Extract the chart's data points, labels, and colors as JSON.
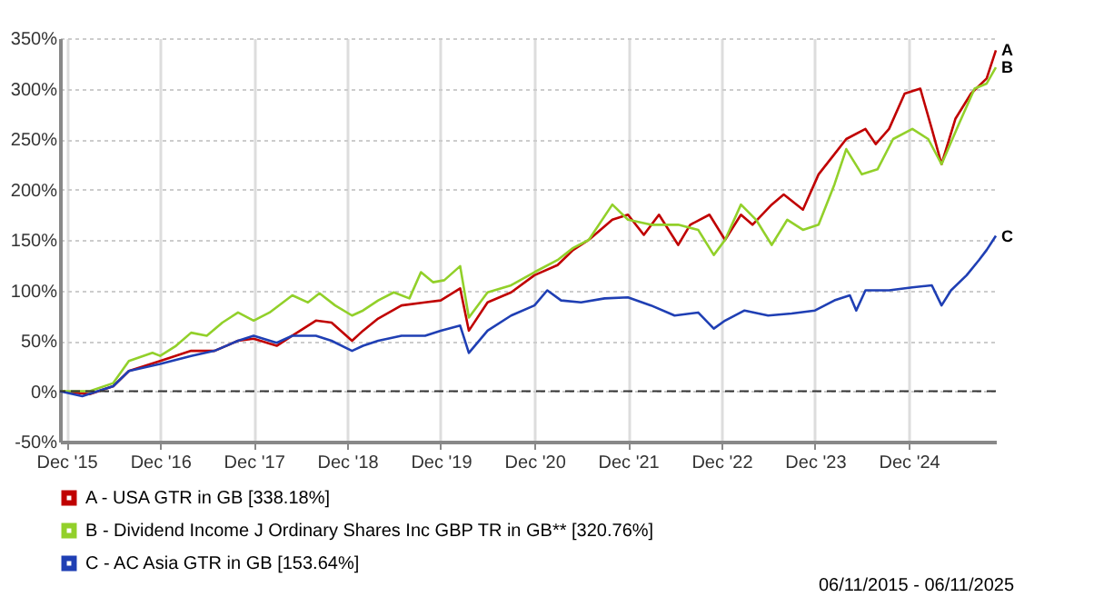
{
  "chart_data": {
    "type": "line",
    "series": [
      {
        "name": "A - USA GTR in GB [338.18%]",
        "color": "#c00000",
        "x": [
          "2015-11-06",
          "2016-03-01",
          "2016-06-01",
          "2016-08-01",
          "2016-12-01",
          "2017-04-01",
          "2017-07-01",
          "2017-10-01",
          "2017-12-01",
          "2018-03-01",
          "2018-05-01",
          "2018-08-01",
          "2018-10-01",
          "2018-12-20",
          "2019-02-01",
          "2019-04-01",
          "2019-07-01",
          "2019-10-01",
          "2019-12-01",
          "2020-02-15",
          "2020-03-20",
          "2020-06-01",
          "2020-09-01",
          "2020-12-01",
          "2021-03-01",
          "2021-05-01",
          "2021-07-01",
          "2021-10-01",
          "2021-12-01",
          "2022-02-01",
          "2022-04-01",
          "2022-06-15",
          "2022-08-01",
          "2022-10-15",
          "2022-12-15",
          "2023-02-15",
          "2023-04-01",
          "2023-06-15",
          "2023-08-01",
          "2023-10-15",
          "2023-12-15",
          "2024-02-15",
          "2024-04-01",
          "2024-06-15",
          "2024-07-25",
          "2024-09-15",
          "2024-11-15",
          "2025-01-15",
          "2025-03-01",
          "2025-04-08",
          "2025-06-01",
          "2025-08-01",
          "2025-10-01",
          "2025-11-06"
        ],
        "values": [
          0,
          -3,
          5,
          20,
          30,
          40,
          40,
          50,
          52,
          45,
          55,
          70,
          68,
          50,
          60,
          72,
          85,
          88,
          90,
          102,
          60,
          88,
          98,
          115,
          125,
          140,
          150,
          170,
          175,
          155,
          175,
          145,
          165,
          175,
          150,
          175,
          165,
          185,
          195,
          180,
          215,
          235,
          250,
          260,
          245,
          260,
          295,
          300,
          260,
          225,
          270,
          295,
          310,
          338
        ]
      },
      {
        "name": "B - Dividend Income J Ordinary Shares Inc GBP TR in GB** [320.76%]",
        "color": "#92d02a",
        "x": [
          "2015-11-06",
          "2016-03-01",
          "2016-06-01",
          "2016-08-01",
          "2016-11-01",
          "2016-12-01",
          "2017-02-01",
          "2017-04-01",
          "2017-06-01",
          "2017-08-01",
          "2017-10-01",
          "2017-12-01",
          "2018-02-01",
          "2018-05-01",
          "2018-07-01",
          "2018-08-15",
          "2018-10-15",
          "2018-12-20",
          "2019-02-01",
          "2019-04-01",
          "2019-06-01",
          "2019-08-01",
          "2019-09-15",
          "2019-11-01",
          "2019-12-15",
          "2020-02-15",
          "2020-03-20",
          "2020-06-01",
          "2020-09-01",
          "2020-12-01",
          "2021-03-01",
          "2021-05-01",
          "2021-07-01",
          "2021-10-01",
          "2021-12-01",
          "2022-03-01",
          "2022-06-15",
          "2022-09-01",
          "2022-11-01",
          "2022-12-15",
          "2023-02-15",
          "2023-04-15",
          "2023-06-15",
          "2023-08-15",
          "2023-10-15",
          "2023-12-15",
          "2024-02-15",
          "2024-04-01",
          "2024-06-01",
          "2024-08-01",
          "2024-10-01",
          "2024-12-15",
          "2025-02-15",
          "2025-04-08",
          "2025-06-15",
          "2025-08-15",
          "2025-10-01",
          "2025-11-06"
        ],
        "values": [
          0,
          0,
          8,
          30,
          38,
          35,
          45,
          58,
          55,
          68,
          78,
          70,
          78,
          95,
          88,
          97,
          85,
          75,
          80,
          90,
          98,
          92,
          118,
          108,
          110,
          124,
          73,
          98,
          105,
          118,
          130,
          142,
          150,
          185,
          170,
          165,
          165,
          160,
          135,
          150,
          185,
          170,
          145,
          170,
          160,
          165,
          205,
          240,
          215,
          220,
          250,
          260,
          250,
          225,
          265,
          300,
          305,
          321
        ]
      },
      {
        "name": "C - AC Asia GTR in GB [153.64%]",
        "color": "#1f3fb4",
        "x": [
          "2015-11-06",
          "2016-02-01",
          "2016-06-01",
          "2016-08-01",
          "2016-12-01",
          "2017-04-01",
          "2017-07-01",
          "2017-10-01",
          "2017-12-01",
          "2018-03-01",
          "2018-05-01",
          "2018-08-01",
          "2018-10-01",
          "2018-12-20",
          "2019-02-01",
          "2019-04-01",
          "2019-07-01",
          "2019-10-01",
          "2019-12-01",
          "2020-02-15",
          "2020-03-20",
          "2020-06-01",
          "2020-09-01",
          "2020-12-01",
          "2021-01-20",
          "2021-03-15",
          "2021-06-01",
          "2021-09-01",
          "2021-12-01",
          "2022-03-01",
          "2022-06-01",
          "2022-09-01",
          "2022-11-01",
          "2022-12-15",
          "2023-03-01",
          "2023-06-01",
          "2023-09-01",
          "2023-12-01",
          "2024-02-15",
          "2024-04-15",
          "2024-05-10",
          "2024-06-15",
          "2024-09-15",
          "2024-12-15",
          "2025-03-01",
          "2025-04-08",
          "2025-05-15",
          "2025-07-15",
          "2025-09-01",
          "2025-10-01",
          "2025-11-06"
        ],
        "values": [
          0,
          -5,
          5,
          20,
          27,
          35,
          40,
          50,
          55,
          48,
          55,
          55,
          50,
          40,
          45,
          50,
          55,
          55,
          60,
          65,
          38,
          60,
          75,
          85,
          100,
          90,
          88,
          92,
          93,
          85,
          75,
          78,
          62,
          70,
          80,
          75,
          77,
          80,
          90,
          95,
          80,
          100,
          100,
          103,
          105,
          85,
          100,
          115,
          130,
          140,
          154
        ]
      }
    ],
    "xlim": [
      "2015-11-06",
      "2025-11-06"
    ],
    "xticks": [
      {
        "value": "2015-12-01",
        "label": "Dec '15"
      },
      {
        "value": "2016-12-01",
        "label": "Dec '16"
      },
      {
        "value": "2017-12-01",
        "label": "Dec '17"
      },
      {
        "value": "2018-12-01",
        "label": "Dec '18"
      },
      {
        "value": "2019-12-01",
        "label": "Dec '19"
      },
      {
        "value": "2020-12-01",
        "label": "Dec '20"
      },
      {
        "value": "2021-12-01",
        "label": "Dec '21"
      },
      {
        "value": "2022-12-01",
        "label": "Dec '22"
      },
      {
        "value": "2023-12-01",
        "label": "Dec '23"
      },
      {
        "value": "2024-12-01",
        "label": "Dec '24"
      }
    ],
    "ylim": [
      -50,
      350
    ],
    "yticks": [
      {
        "value": -50,
        "label": "-50%"
      },
      {
        "value": 0,
        "label": "0%"
      },
      {
        "value": 50,
        "label": "50%"
      },
      {
        "value": 100,
        "label": "100%"
      },
      {
        "value": 150,
        "label": "150%"
      },
      {
        "value": 200,
        "label": "200%"
      },
      {
        "value": 250,
        "label": "250%"
      },
      {
        "value": 300,
        "label": "300%"
      },
      {
        "value": 350,
        "label": "350%"
      }
    ],
    "ref_lines": [
      {
        "axis": "y",
        "value": 0,
        "color": "#333333",
        "line_style": "dashed"
      }
    ],
    "grid": true,
    "legend": "bottom left",
    "marker": "none",
    "line_style": "solid",
    "annotations": [
      {
        "text": "A",
        "x": "2025-11-06",
        "y": 338
      },
      {
        "text": "B",
        "x": "2025-11-06",
        "y": 321
      },
      {
        "text": "C",
        "x": "2025-11-06",
        "y": 154
      },
      "06/11/2015 - 06/11/2025"
    ]
  }
}
